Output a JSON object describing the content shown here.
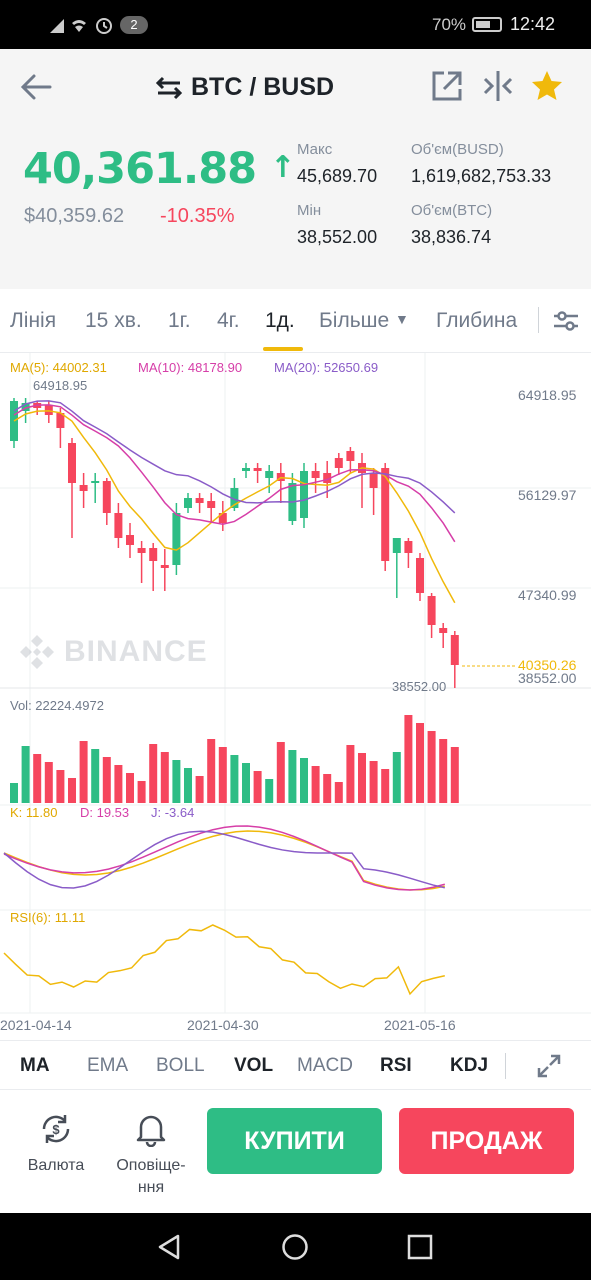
{
  "status_bar": {
    "notif_count": "2",
    "battery": "70%",
    "time": "12:42"
  },
  "header": {
    "pair": "BTC / BUSD",
    "price": "40,361.88",
    "fiat_price": "$40,359.62",
    "change": "-10.35%",
    "high_label": "Макс",
    "high_value": "45,689.70",
    "low_label": "Мін",
    "low_value": "38,552.00",
    "vol_busd_label": "Об'єм(BUSD)",
    "vol_busd_value": "1,619,682,753.33",
    "vol_btc_label": "Об'єм(BTC)",
    "vol_btc_value": "38,836.74"
  },
  "tabs": [
    "Лінія",
    "15 хв.",
    "1г.",
    "4г.",
    "1д.",
    "Більше",
    "Глибина"
  ],
  "active_tab": "1д.",
  "chart": {
    "ma5": "MA(5): 44002.31",
    "ma10": "MA(10): 48178.90",
    "ma20": "MA(20): 52650.69",
    "high_marker": "64918.95",
    "low_marker": "38552.00",
    "y_labels": [
      "64918.95",
      "56129.97",
      "47340.99",
      "38552.00"
    ],
    "last_price_tag": "40350.26",
    "watermark": "BINANCE",
    "vol": "Vol: 22224.4972",
    "kdj_k": "K: 11.80",
    "kdj_d": "D: 19.53",
    "kdj_j": "J: -3.64",
    "rsi": "RSI(6): 11.11",
    "x_labels": [
      "2021-04-14",
      "2021-04-30",
      "2021-05-16"
    ],
    "colors": {
      "up": "#2ebd85",
      "down": "#f6465d",
      "ma5": "#f0b90b",
      "ma10": "#d63ea8",
      "ma20": "#8a5cc8"
    }
  },
  "indicators": [
    "MA",
    "EMA",
    "BOLL",
    "VOL",
    "MACD",
    "RSI",
    "KDJ"
  ],
  "actions": {
    "currency_label": "Валюта",
    "alerts_label": "Оповіще-\nння",
    "buy_label": "КУПИТИ",
    "sell_label": "ПРОДАЖ"
  }
}
